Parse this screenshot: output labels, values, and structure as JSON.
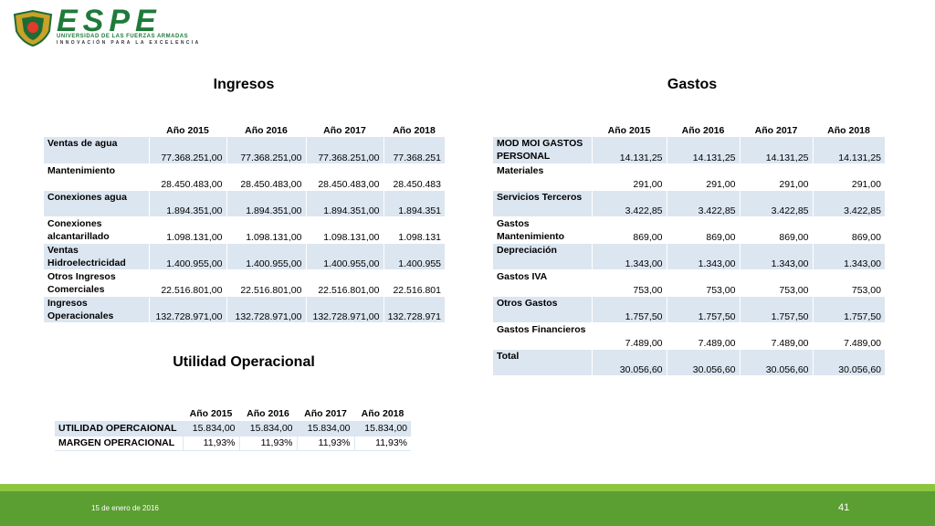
{
  "header": {
    "logo_text": "ESPE",
    "logo_subtitle": "UNIVERSIDAD DE LAS FUERZAS ARMADAS",
    "logo_tagline": "INNOVACIÓN PARA LA EXCELENCIA"
  },
  "ingresos": {
    "title": "Ingresos",
    "columns": [
      "Año 2015",
      "Año 2016",
      "Año 2017",
      "Año 2018"
    ],
    "rows": [
      [
        "Ventas de agua",
        "77.368.251,00",
        "77.368.251,00",
        "77.368.251,00",
        "77.368.251"
      ],
      [
        "Mantenimiento",
        "28.450.483,00",
        "28.450.483,00",
        "28.450.483,00",
        "28.450.483"
      ],
      [
        "Conexiones agua",
        "1.894.351,00",
        "1.894.351,00",
        "1.894.351,00",
        "1.894.351"
      ],
      [
        "Conexiones alcantarillado",
        "1.098.131,00",
        "1.098.131,00",
        "1.098.131,00",
        "1.098.131"
      ],
      [
        "Ventas Hidroelectricidad",
        "1.400.955,00",
        "1.400.955,00",
        "1.400.955,00",
        "1.400.955"
      ],
      [
        "Otros Ingresos Comerciales",
        "22.516.801,00",
        "22.516.801,00",
        "22.516.801,00",
        "22.516.801"
      ],
      [
        "Ingresos Operacionales",
        "132.728.971,00",
        "132.728.971,00",
        "132.728.971,00",
        "132.728.971"
      ]
    ]
  },
  "gastos": {
    "title": "Gastos",
    "columns": [
      "Año 2015",
      "Año 2016",
      "Año 2017",
      "Año 2018"
    ],
    "rows": [
      [
        "MOD MOI GASTOS PERSONAL",
        "14.131,25",
        "14.131,25",
        "14.131,25",
        "14.131,25"
      ],
      [
        "Materiales",
        "291,00",
        "291,00",
        "291,00",
        "291,00"
      ],
      [
        "Servicios Terceros",
        "3.422,85",
        "3.422,85",
        "3.422,85",
        "3.422,85"
      ],
      [
        "Gastos Mantenimiento",
        "869,00",
        "869,00",
        "869,00",
        "869,00"
      ],
      [
        "Depreciación",
        "1.343,00",
        "1.343,00",
        "1.343,00",
        "1.343,00"
      ],
      [
        "Gastos IVA",
        "753,00",
        "753,00",
        "753,00",
        "753,00"
      ],
      [
        "Otros Gastos",
        "1.757,50",
        "1.757,50",
        "1.757,50",
        "1.757,50"
      ],
      [
        "Gastos Financieros",
        "7.489,00",
        "7.489,00",
        "7.489,00",
        "7.489,00"
      ],
      [
        "Total",
        "30.056,60",
        "30.056,60",
        "30.056,60",
        "30.056,60"
      ]
    ]
  },
  "utilidad": {
    "title": "Utilidad Operacional",
    "columns": [
      "Año 2015",
      "Año 2016",
      "Año 2017",
      "Año 2018"
    ],
    "rows": [
      [
        "UTILIDAD OPERCAIONAL",
        "15.834,00",
        "15.834,00",
        "15.834,00",
        "15.834,00"
      ],
      [
        "MARGEN OPERACIONAL",
        "11,93%",
        "11,93%",
        "11,93%",
        "11,93%"
      ]
    ]
  },
  "footer": {
    "date": "15 de enero de 2016",
    "page": "41"
  }
}
